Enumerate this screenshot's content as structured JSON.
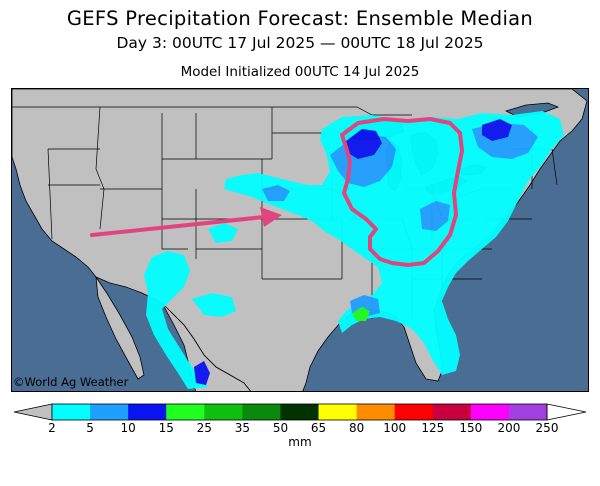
{
  "title": "GEFS Precipitation Forecast: Ensemble Median",
  "subtitle": "Day 3: 00UTC 17 Jul 2025 — 00UTC 18 Jul 2025",
  "initialized": "Model Initialized 00UTC 14 Jul 2025",
  "credit": "©World Ag Weather",
  "colors": {
    "ocean": "#4a6d94",
    "land": "#c0c0c0",
    "highlight": "#e0457d"
  },
  "colorbar": {
    "unit": "mm",
    "labels": [
      "2",
      "5",
      "10",
      "15",
      "25",
      "35",
      "50",
      "65",
      "80",
      "100",
      "125",
      "150",
      "200",
      "250"
    ],
    "colors": [
      "#00ffff",
      "#1f9fff",
      "#0a14f0",
      "#20ff20",
      "#10c010",
      "#0a8a0a",
      "#003300",
      "#ffff00",
      "#ff8c00",
      "#ff0000",
      "#c80040",
      "#ff00ff",
      "#a040e0"
    ]
  },
  "annotations": [
    {
      "type": "arrow",
      "description": "pink arrow pointing east across central Plains"
    },
    {
      "type": "outline",
      "description": "pink loop around Great Lakes and Ohio Valley"
    }
  ]
}
